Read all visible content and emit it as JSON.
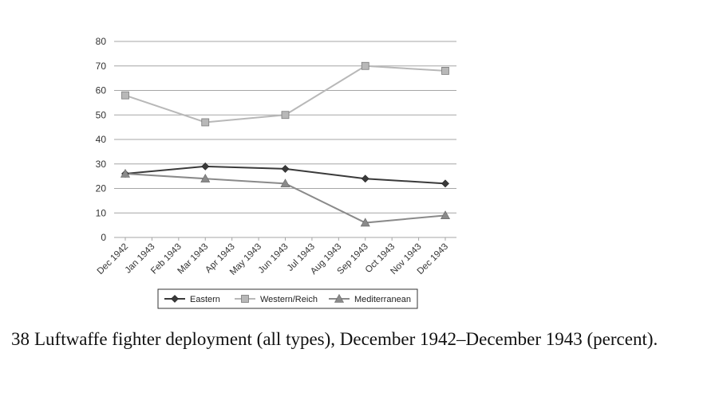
{
  "chart_data": {
    "type": "line",
    "categories": [
      "Dec 1942",
      "Jan 1943",
      "Feb 1943",
      "Mar 1943",
      "Apr 1943",
      "May 1943",
      "Jun 1943",
      "Jul 1943",
      "Aug 1943",
      "Sep 1943",
      "Oct 1943",
      "Nov 1943",
      "Dec 1943"
    ],
    "series": [
      {
        "name": "Eastern",
        "marker": "diamond",
        "color": "#3a3a3a",
        "values": [
          26,
          null,
          null,
          29,
          null,
          null,
          28,
          null,
          null,
          24,
          null,
          null,
          22
        ]
      },
      {
        "name": "Western/Reich",
        "marker": "square",
        "color": "#b8b8b8",
        "values": [
          58,
          null,
          null,
          47,
          null,
          null,
          50,
          null,
          null,
          70,
          null,
          null,
          68
        ]
      },
      {
        "name": "Mediterranean",
        "marker": "triangle",
        "color": "#8a8a8a",
        "values": [
          26,
          null,
          null,
          24,
          null,
          null,
          22,
          null,
          null,
          6,
          null,
          null,
          9
        ]
      }
    ],
    "ylim": [
      0,
      80
    ],
    "yticks": [
      "0",
      "10",
      "20",
      "30",
      "40",
      "50",
      "60",
      "70",
      "80"
    ],
    "grid": true,
    "legend": "bottom"
  },
  "caption": {
    "number": "38",
    "text": "Luftwaffe fighter deployment (all types), December 1942–December 1943 (percent)."
  }
}
